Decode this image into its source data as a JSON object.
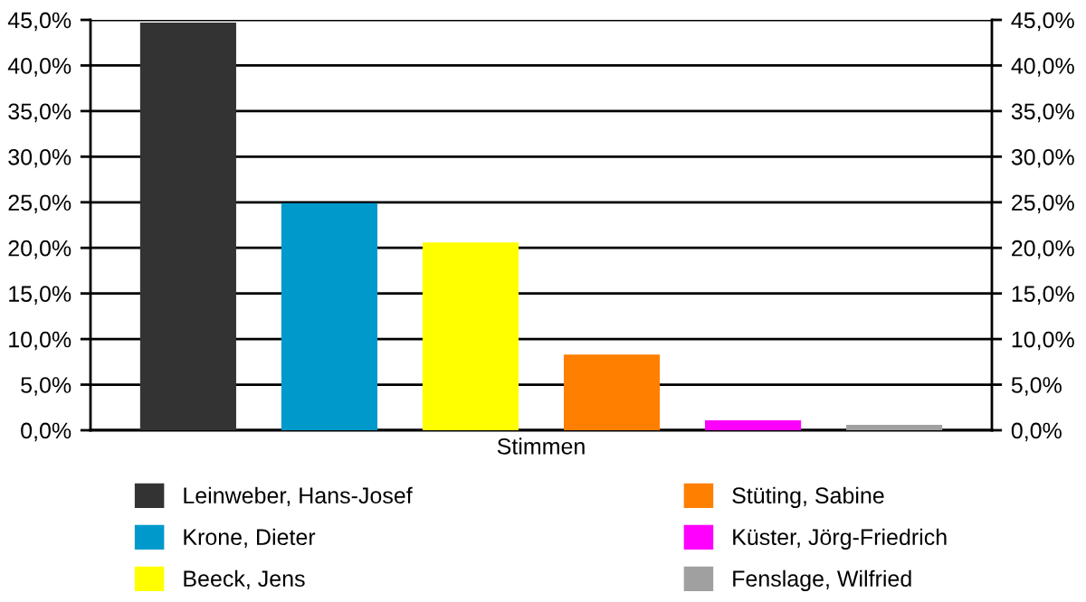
{
  "chart_data": {
    "type": "bar",
    "xlabel": null,
    "categories": [
      "Stimmen"
    ],
    "series": [
      {
        "name": "Leinweber, Hans-Josef",
        "color": "#333333",
        "values": [
          44.7
        ]
      },
      {
        "name": "Krone, Dieter",
        "color": "#0099cc",
        "values": [
          24.9
        ]
      },
      {
        "name": "Beeck, Jens",
        "color": "#ffff00",
        "values": [
          20.6
        ]
      },
      {
        "name": "Stüting, Sabine",
        "color": "#ff7f00",
        "values": [
          8.3
        ]
      },
      {
        "name": "Küster, Jörg-Friedrich",
        "color": "#ff00ff",
        "values": [
          1.1
        ]
      },
      {
        "name": "Fenslage, Wilfried",
        "color": "#a0a0a0",
        "values": [
          0.6
        ]
      }
    ],
    "ylim": [
      0,
      45
    ],
    "yticks": [
      {
        "value": 0,
        "label": "0,0%"
      },
      {
        "value": 5,
        "label": "5,0%"
      },
      {
        "value": 10,
        "label": "10,0%"
      },
      {
        "value": 15,
        "label": "15,0%"
      },
      {
        "value": 20,
        "label": "20,0%"
      },
      {
        "value": 25,
        "label": "25,0%"
      },
      {
        "value": 30,
        "label": "30,0%"
      },
      {
        "value": 35,
        "label": "35,0%"
      },
      {
        "value": 40,
        "label": "40,0%"
      },
      {
        "value": 45,
        "label": "45,0%"
      }
    ],
    "grid": "y",
    "legend": "bottom"
  }
}
